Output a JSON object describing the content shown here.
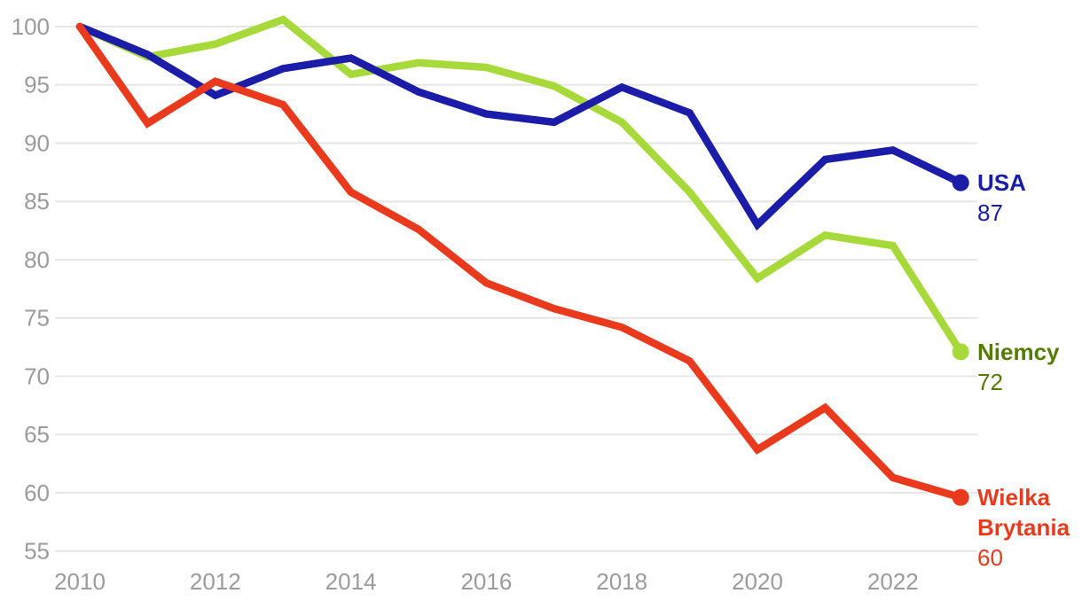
{
  "chart_data": {
    "type": "line",
    "x_years": [
      2010,
      2011,
      2012,
      2013,
      2014,
      2015,
      2016,
      2017,
      2018,
      2019,
      2020,
      2021,
      2022,
      2023
    ],
    "series": [
      {
        "name": "USA",
        "end_label": "87",
        "line_color": "#1b1da9",
        "label_color": "#1b1da9",
        "values": [
          100,
          97.6,
          94.1,
          96.4,
          97.3,
          94.4,
          92.5,
          91.8,
          94.8,
          92.6,
          83.0,
          88.6,
          89.4,
          86.6
        ]
      },
      {
        "name": "Niemcy",
        "end_label": "72",
        "line_color": "#a6d939",
        "label_color": "#527d00",
        "values": [
          100,
          97.4,
          98.5,
          100.6,
          95.9,
          96.9,
          96.5,
          94.9,
          91.8,
          85.8,
          78.4,
          82.1,
          81.2,
          72.1
        ]
      },
      {
        "name": "Wielka Brytania",
        "end_label": "60",
        "line_color": "#ea3a1e",
        "label_color": "#ea3a1e",
        "values": [
          100,
          91.7,
          95.3,
          93.3,
          85.8,
          82.6,
          78.0,
          75.8,
          74.2,
          71.3,
          63.7,
          67.3,
          61.3,
          59.6
        ]
      }
    ],
    "yticks": [
      100,
      95,
      90,
      85,
      80,
      75,
      70,
      65,
      60,
      55
    ],
    "xticks": [
      2010,
      2012,
      2014,
      2016,
      2018,
      2020,
      2022
    ],
    "ylim": [
      55,
      100
    ],
    "xlim": [
      2010,
      2023
    ],
    "grid": "horizontal",
    "legend_position": "end-of-line-labels",
    "title": "",
    "xlabel": "",
    "ylabel": ""
  },
  "style": {
    "background": "#ffffff",
    "tick_color": "#9b9b9b",
    "grid_color": "#e6e6e6"
  }
}
